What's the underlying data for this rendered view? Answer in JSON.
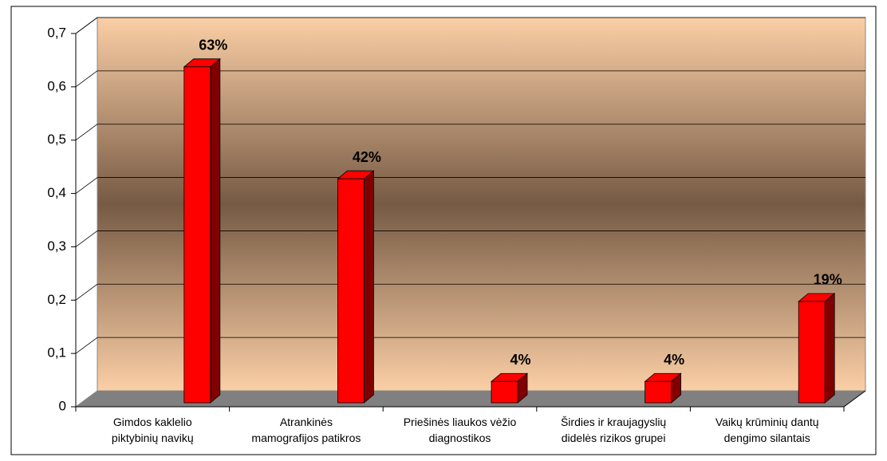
{
  "chart_data": {
    "type": "bar3d",
    "categories": [
      [
        "Gimdos kaklelio",
        "piktybinių navikų"
      ],
      [
        "Atrankinės",
        "mamografijos patikros"
      ],
      [
        "Priešinės liaukos vėžio",
        "diagnostikos"
      ],
      [
        "Širdies ir kraujagyslių",
        "didelės rizikos grupei"
      ],
      [
        "Vaikų krūminių dantų",
        "dengimo silantais"
      ]
    ],
    "values": [
      0.63,
      0.42,
      0.04,
      0.04,
      0.19
    ],
    "value_labels": [
      "63%",
      "42%",
      "4%",
      "4%",
      "19%"
    ],
    "color": "#ff0000",
    "ylim": [
      0,
      0.7
    ],
    "yticks": [
      0,
      {
        "value": 0.1,
        "label": "0,1"
      },
      {
        "value": 0.2,
        "label": "0,2"
      },
      {
        "value": 0.3,
        "label": "0,3"
      },
      {
        "value": 0.4,
        "label": "0,4"
      },
      {
        "value": 0.5,
        "label": "0,5"
      },
      {
        "value": 0.6,
        "label": "0,6"
      },
      {
        "value": 0.7,
        "label": "0,7"
      }
    ],
    "grid": true
  }
}
